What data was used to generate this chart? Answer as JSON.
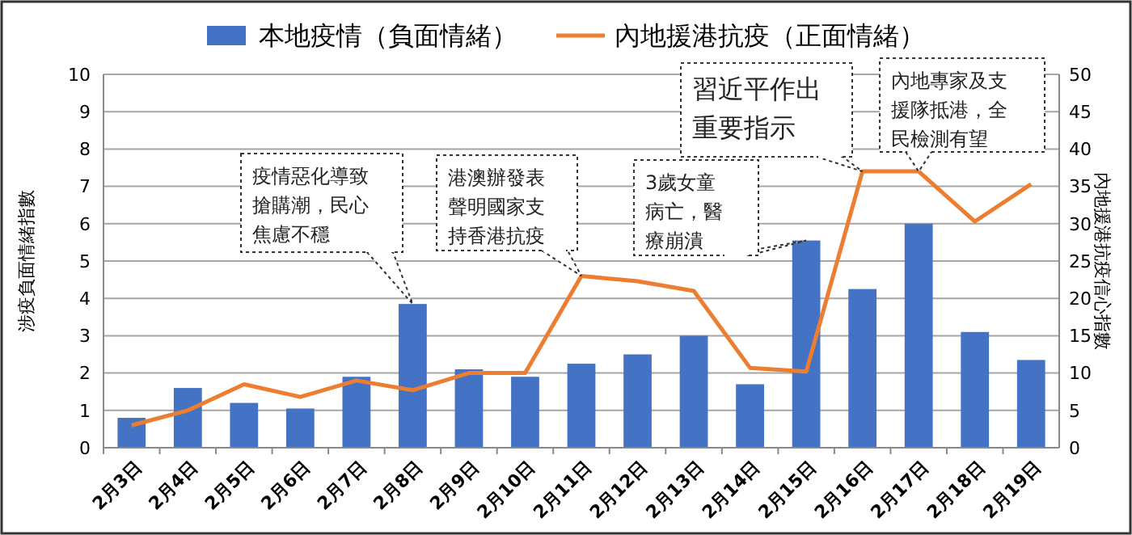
{
  "chart_data": {
    "type": "bar",
    "categories": [
      "2月3日",
      "2月4日",
      "2月5日",
      "2月6日",
      "2月7日",
      "2月8日",
      "2月9日",
      "2月10日",
      "2月11日",
      "2月12日",
      "2月13日",
      "2月14日",
      "2月15日",
      "2月16日",
      "2月17日",
      "2月18日",
      "2月19日"
    ],
    "series": [
      {
        "name": "本地疫情（負面情緒）",
        "color": "#4472c4",
        "values": [
          0.8,
          1.6,
          1.2,
          1.05,
          1.9,
          3.85,
          2.1,
          1.9,
          2.25,
          2.5,
          3.0,
          1.7,
          5.55,
          4.25,
          6.0,
          3.1,
          2.35
        ]
      },
      {
        "name": "內地援港抗疫（正面情緒）",
        "type": "line",
        "axis": "y2",
        "color": "#ed7d31",
        "values": [
          3,
          5,
          8.5,
          6.8,
          9,
          7.7,
          10,
          10,
          23,
          22.3,
          21,
          10.7,
          10.2,
          37,
          37,
          30.3,
          35.3
        ]
      }
    ],
    "ylabel": "涉疫負面情緒指數",
    "y2label": "內地援港抗疫信心指數",
    "ylim": [
      0,
      10
    ],
    "yticks": [
      0,
      1,
      2,
      3,
      4,
      5,
      6,
      7,
      8,
      9,
      10
    ],
    "y2lim": [
      0,
      50
    ],
    "y2ticks": [
      0,
      5,
      10,
      15,
      20,
      25,
      30,
      35,
      40,
      45,
      50
    ],
    "grid": "y",
    "legend": "top",
    "marker": "none",
    "line_style": "solid",
    "annotations": [
      "疫情惡化導致搶購潮，民心焦慮不穩",
      "港澳辦發表聲明國家支持香港抗疫",
      "3歲女童病亡，醫療崩潰",
      "習近平作出重要指示",
      "內地專家及支援隊抵港，全民檢測有望"
    ]
  }
}
